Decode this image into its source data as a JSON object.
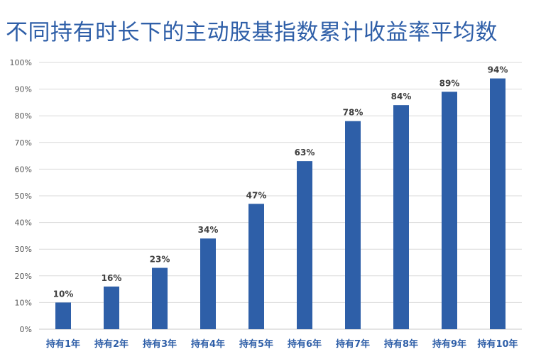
{
  "title": "不同持有时长下的主动股基指数累计收益率平均数",
  "chart_data": {
    "type": "bar",
    "title": "不同持有时长下的主动股基指数累计收益率平均数",
    "categories": [
      "持有1年",
      "持有2年",
      "持有3年",
      "持有4年",
      "持有5年",
      "持有6年",
      "持有7年",
      "持有8年",
      "持有9年",
      "持有10年"
    ],
    "values": [
      10,
      16,
      23,
      34,
      47,
      63,
      78,
      84,
      89,
      94
    ],
    "data_labels": [
      "10%",
      "16%",
      "23%",
      "34%",
      "47%",
      "63%",
      "78%",
      "84%",
      "89%",
      "94%"
    ],
    "y_ticks": [
      "0%",
      "10%",
      "20%",
      "30%",
      "40%",
      "50%",
      "60%",
      "70%",
      "80%",
      "90%",
      "100%"
    ],
    "ylim": [
      0,
      100
    ],
    "xlabel": "",
    "ylabel": "",
    "grid": true,
    "legend": "none",
    "bar_color": "#2e5fa8"
  }
}
